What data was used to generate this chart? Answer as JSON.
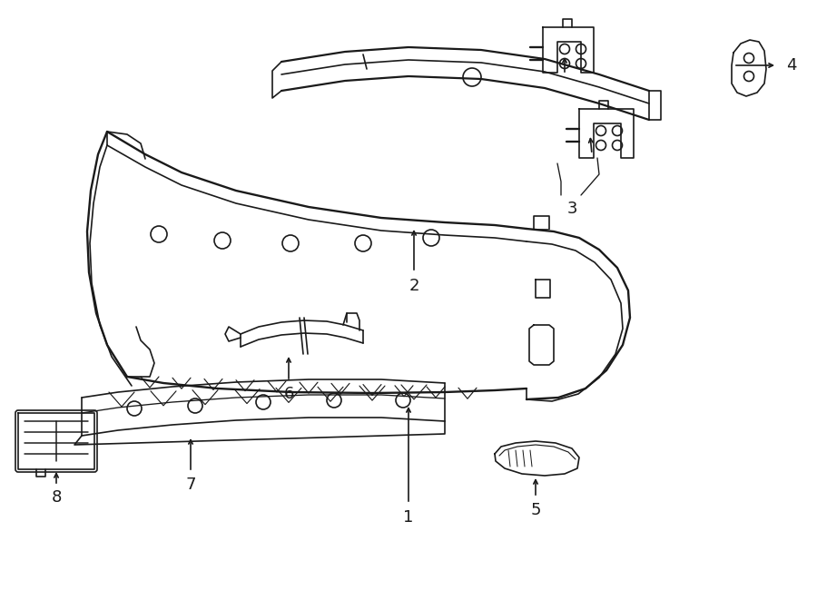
{
  "bg": "#ffffff",
  "lc": "#1a1a1a",
  "lw": 1.2,
  "fw": 9.0,
  "fh": 6.61,
  "fs": 13
}
